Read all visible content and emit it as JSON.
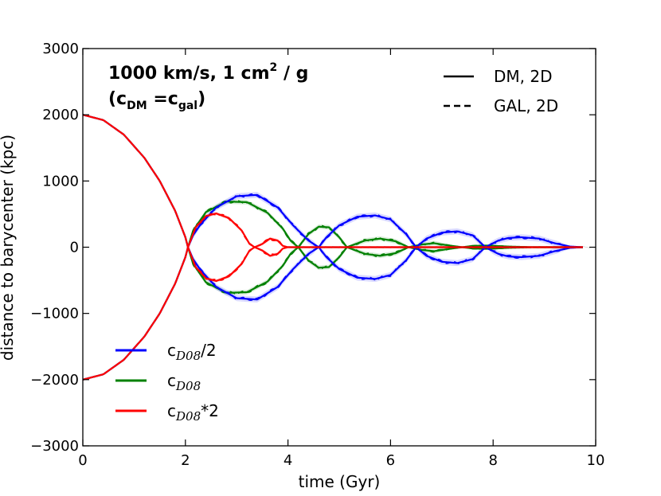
{
  "chart_data": {
    "type": "line",
    "xlabel": "time (Gyr)",
    "ylabel": "distance to barycenter (kpc)",
    "xlim": [
      0,
      10
    ],
    "ylim": [
      -3000,
      3000
    ],
    "xticks": [
      0,
      2,
      4,
      6,
      8,
      10
    ],
    "yticks": [
      -3000,
      -2000,
      -1000,
      0,
      1000,
      2000,
      3000
    ],
    "grid": false,
    "annotation": {
      "line1": {
        "prefix": "1000 km/s, 1 cm",
        "sup": "2",
        "suffix": " / g"
      },
      "line2": {
        "open": "(c",
        "sub1": "DM",
        "eq": " =c",
        "sub2": "gal",
        "close": ")"
      }
    },
    "style_legend": {
      "position": "top-right",
      "entries": [
        {
          "label": "DM, 2D",
          "style": "solid"
        },
        {
          "label": "GAL, 2D",
          "style": "dashed"
        }
      ]
    },
    "series_legend": {
      "position": "lower-left",
      "entries": [
        {
          "base": "c",
          "sub": "D08",
          "suffix": "/2",
          "color": "#0000ff"
        },
        {
          "base": "c",
          "sub": "D08",
          "suffix": "",
          "color": "#008000"
        },
        {
          "base": "c",
          "sub": "D08",
          "suffix": "*2",
          "color": "#ff0000"
        }
      ]
    },
    "series": [
      {
        "name": "cD08/2",
        "color": "#0000ff",
        "infall": [
          [
            0,
            2000
          ],
          [
            0.4,
            1920
          ],
          [
            0.8,
            1700
          ],
          [
            1.2,
            1350
          ],
          [
            1.5,
            1000
          ],
          [
            1.8,
            550
          ],
          [
            2.0,
            150
          ],
          [
            2.05,
            0
          ]
        ],
        "envelope": [
          [
            2.05,
            0
          ],
          [
            2.15,
            180
          ],
          [
            2.3,
            350
          ],
          [
            2.6,
            600
          ],
          [
            3.0,
            770
          ],
          [
            3.4,
            790
          ],
          [
            3.8,
            600
          ],
          [
            4.1,
            330
          ],
          [
            4.4,
            100
          ],
          [
            4.6,
            0
          ],
          [
            4.75,
            150
          ],
          [
            5.0,
            330
          ],
          [
            5.35,
            460
          ],
          [
            5.7,
            480
          ],
          [
            6.0,
            420
          ],
          [
            6.3,
            200
          ],
          [
            6.5,
            0
          ],
          [
            6.7,
            130
          ],
          [
            7.0,
            220
          ],
          [
            7.3,
            240
          ],
          [
            7.6,
            180
          ],
          [
            7.85,
            0
          ],
          [
            8.1,
            100
          ],
          [
            8.3,
            140
          ],
          [
            8.55,
            150
          ],
          [
            8.9,
            130
          ],
          [
            9.2,
            60
          ],
          [
            9.5,
            10
          ],
          [
            9.75,
            0
          ]
        ],
        "band_width": 45
      },
      {
        "name": "cD08",
        "color": "#008000",
        "infall": [
          [
            0,
            2000
          ],
          [
            0.4,
            1920
          ],
          [
            0.8,
            1700
          ],
          [
            1.2,
            1350
          ],
          [
            1.5,
            1000
          ],
          [
            1.8,
            550
          ],
          [
            2.0,
            150
          ],
          [
            2.05,
            0
          ]
        ],
        "envelope": [
          [
            2.05,
            0
          ],
          [
            2.15,
            250
          ],
          [
            2.4,
            530
          ],
          [
            2.8,
            690
          ],
          [
            3.2,
            680
          ],
          [
            3.6,
            520
          ],
          [
            3.9,
            280
          ],
          [
            4.05,
            100
          ],
          [
            4.2,
            0
          ],
          [
            4.4,
            200
          ],
          [
            4.6,
            310
          ],
          [
            4.8,
            300
          ],
          [
            5.0,
            150
          ],
          [
            5.15,
            0
          ],
          [
            5.5,
            100
          ],
          [
            5.8,
            130
          ],
          [
            6.1,
            90
          ],
          [
            6.35,
            0
          ],
          [
            6.6,
            40
          ],
          [
            6.85,
            60
          ],
          [
            7.1,
            30
          ],
          [
            7.4,
            0
          ],
          [
            7.6,
            20
          ],
          [
            7.9,
            25
          ],
          [
            8.3,
            10
          ],
          [
            8.8,
            0
          ],
          [
            9.75,
            0
          ]
        ],
        "band_width": 35
      },
      {
        "name": "cD08*2",
        "color": "#ff0000",
        "infall": [
          [
            0,
            2000
          ],
          [
            0.4,
            1920
          ],
          [
            0.8,
            1700
          ],
          [
            1.2,
            1350
          ],
          [
            1.5,
            1000
          ],
          [
            1.8,
            550
          ],
          [
            2.0,
            150
          ],
          [
            2.05,
            0
          ]
        ],
        "envelope": [
          [
            2.05,
            0
          ],
          [
            2.2,
            300
          ],
          [
            2.4,
            470
          ],
          [
            2.6,
            510
          ],
          [
            2.85,
            440
          ],
          [
            3.1,
            250
          ],
          [
            3.25,
            50
          ],
          [
            3.35,
            0
          ],
          [
            3.5,
            50
          ],
          [
            3.65,
            130
          ],
          [
            3.8,
            100
          ],
          [
            3.9,
            20
          ],
          [
            4.0,
            0
          ],
          [
            9.75,
            0
          ]
        ],
        "band_width": 25
      }
    ]
  }
}
